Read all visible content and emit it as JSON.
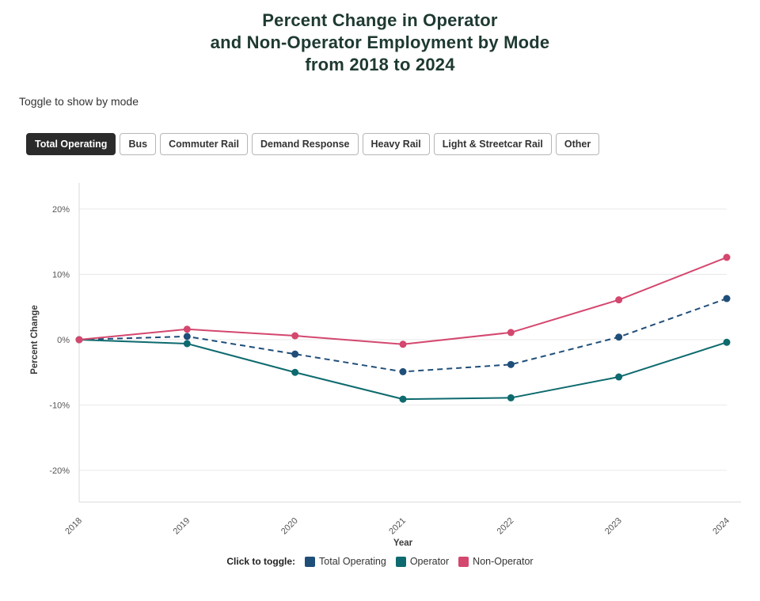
{
  "title_lines": [
    "Percent Change in Operator",
    "and Non-Operator Employment by Mode",
    "from 2018 to 2024"
  ],
  "mode_toggle": {
    "hint": "Toggle to show by mode",
    "buttons": [
      {
        "label": "Total Operating",
        "active": true
      },
      {
        "label": "Bus",
        "active": false
      },
      {
        "label": "Commuter Rail",
        "active": false
      },
      {
        "label": "Demand Response",
        "active": false
      },
      {
        "label": "Heavy Rail",
        "active": false
      },
      {
        "label": "Light & Streetcar Rail",
        "active": false
      },
      {
        "label": "Other",
        "active": false
      }
    ]
  },
  "colors": {
    "title": "#1e3932",
    "active_button_bg": "#2b2b2b",
    "grid": "#e9e9e9",
    "axis": "#d9d9d9",
    "tick_text": "#555555"
  },
  "chart_data": {
    "type": "line",
    "title": "Percent Change in Operator and Non-Operator Employment by Mode from 2018 to 2024",
    "categories": [
      "2018",
      "2019",
      "2020",
      "2021",
      "2022",
      "2023",
      "2024"
    ],
    "series": [
      {
        "name": "Total Operating",
        "color": "#1f4e79",
        "dashed": true,
        "values": [
          0,
          0.5,
          -2.2,
          -4.9,
          -3.8,
          0.4,
          6.3
        ]
      },
      {
        "name": "Operator",
        "color": "#0d6a6e",
        "dashed": false,
        "values": [
          0,
          -0.6,
          -5.0,
          -9.1,
          -8.9,
          -5.7,
          -0.4
        ]
      },
      {
        "name": "Non-Operator",
        "color": "#d4476e",
        "dashed": false,
        "values": [
          0,
          1.6,
          0.6,
          -0.7,
          1.1,
          6.1,
          12.6
        ]
      }
    ],
    "xlabel": "Year",
    "ylabel": "Percent Change",
    "yticks": [
      20,
      10,
      0,
      -10,
      -20
    ],
    "ytick_suffix": "%",
    "ylim": [
      -25,
      24
    ],
    "grid": true,
    "legend_position": "bottom",
    "legend_prefix": "Click to toggle:"
  }
}
